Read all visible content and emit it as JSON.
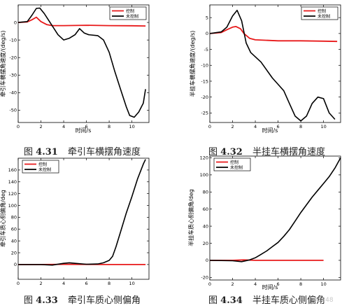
{
  "legend_labels": {
    "controlled": "控制",
    "uncontrolled": "未控制"
  },
  "colors": {
    "controlled": "#e8191a",
    "uncontrolled": "#000000"
  },
  "captions": [
    {
      "num": "4.31",
      "prefix": "图",
      "text": "牵引车横摆角速度"
    },
    {
      "num": "4.32",
      "prefix": "图",
      "text": "半挂车横摆角速度"
    },
    {
      "num": "4.33",
      "prefix": "图",
      "text": "牵引车质心侧偏角"
    },
    {
      "num": "4.34",
      "prefix": "图",
      "text": "半挂车质心侧偏角"
    }
  ],
  "watermark": "02248",
  "chart_data": [
    {
      "type": "line",
      "xlabel": "时间/s",
      "ylabel": "牵引车横摆角速度/(deg/s)",
      "xlim": [
        0,
        11.5
      ],
      "ylim": [
        -57,
        10
      ],
      "xticks": [
        0,
        2,
        4,
        6,
        8,
        10
      ],
      "yticks": [
        0,
        -10,
        -20,
        -30,
        -40,
        -50
      ],
      "legend": "top-right",
      "series": [
        {
          "name": "控制",
          "color": "controlled",
          "x": [
            0,
            0.8,
            1.2,
            1.6,
            2,
            2.5,
            3,
            4,
            6,
            8,
            10,
            11.2
          ],
          "y": [
            0,
            0.3,
            1.5,
            3,
            0.5,
            -1.2,
            -1.8,
            -1.8,
            -1.6,
            -1.8,
            -1.9,
            -2
          ]
        },
        {
          "name": "未控制",
          "color": "uncontrolled",
          "x": [
            0,
            0.8,
            1.2,
            1.6,
            1.9,
            2.3,
            2.6,
            3,
            3.5,
            4,
            4.5,
            5,
            5.4,
            5.8,
            6.2,
            7,
            7.5,
            8,
            8.5,
            9,
            9.5,
            9.8,
            10.2,
            10.6,
            11,
            11.2
          ],
          "y": [
            0,
            0.5,
            4,
            8,
            8.2,
            5,
            2,
            -2,
            -7,
            -10,
            -9,
            -7,
            -3.5,
            -6,
            -7,
            -7.5,
            -10,
            -17,
            -28,
            -38,
            -48,
            -53,
            -54,
            -51,
            -46,
            -38
          ]
        }
      ]
    },
    {
      "type": "line",
      "xlabel": "时间/s",
      "ylabel": "半挂车横摆角速度/(deg/s)",
      "xlim": [
        0,
        11.5
      ],
      "ylim": [
        -28,
        9
      ],
      "xticks": [
        0,
        2,
        4,
        6,
        8,
        10
      ],
      "yticks": [
        5,
        0,
        -5,
        -10,
        -15,
        -20,
        -25
      ],
      "legend": "top-right",
      "series": [
        {
          "name": "控制",
          "color": "controlled",
          "x": [
            0,
            1,
            1.5,
            2,
            2.3,
            2.7,
            3,
            3.5,
            4,
            6,
            8,
            10,
            11.2
          ],
          "y": [
            0,
            0.3,
            1.2,
            2,
            2.2,
            1.5,
            0,
            -1.5,
            -2,
            -2.3,
            -2.3,
            -2.4,
            -2.5
          ]
        },
        {
          "name": "未控制",
          "color": "uncontrolled",
          "x": [
            0,
            1,
            1.5,
            2,
            2.4,
            2.8,
            3.2,
            3.6,
            4.5,
            5.5,
            6,
            6.5,
            7,
            7.5,
            8,
            8.5,
            9,
            9.5,
            10,
            10.5,
            11
          ],
          "y": [
            0,
            0.5,
            2,
            5.5,
            7.3,
            4,
            -3,
            -6,
            -9,
            -14,
            -16,
            -18,
            -22,
            -26,
            -27.5,
            -26,
            -22,
            -20,
            -20.5,
            -25,
            -27
          ]
        }
      ]
    },
    {
      "type": "line",
      "xlabel": "",
      "ylabel": "牵引车质心侧偏角/deg",
      "xlim": [
        0,
        11.5
      ],
      "ylim": [
        -25,
        180
      ],
      "xticks": [
        0,
        2,
        4,
        6,
        8,
        10
      ],
      "yticks": [
        0,
        20,
        40,
        60,
        80,
        100,
        120,
        140,
        160
      ],
      "legend": "top-left",
      "series": [
        {
          "name": "控制",
          "color": "controlled",
          "x": [
            0,
            2,
            4,
            6,
            8,
            10,
            11.2
          ],
          "y": [
            0,
            0,
            0.4,
            0.2,
            0,
            0,
            0
          ]
        },
        {
          "name": "未控制",
          "color": "uncontrolled",
          "x": [
            0,
            2,
            3,
            4,
            4.5,
            5,
            6,
            7,
            7.5,
            8,
            8.3,
            8.6,
            9,
            9.5,
            10,
            10.5,
            11,
            11.2
          ],
          "y": [
            0,
            0,
            -1,
            2,
            3,
            2,
            0.5,
            1,
            3,
            7,
            14,
            30,
            55,
            87,
            115,
            145,
            170,
            178
          ]
        }
      ]
    },
    {
      "type": "line",
      "xlabel": "时间/s",
      "ylabel": "半挂车质心侧偏角/deg",
      "xlim": [
        0,
        11.5
      ],
      "ylim": [
        -23,
        122
      ],
      "xticks": [
        0,
        2,
        4,
        6,
        8,
        10
      ],
      "yticks": [
        120,
        100,
        80,
        60,
        40,
        20,
        0,
        -20
      ],
      "legend": "top-left",
      "series": [
        {
          "name": "控制",
          "color": "controlled",
          "x": [
            0,
            2,
            3,
            4,
            6,
            8,
            10
          ],
          "y": [
            0,
            0,
            0.5,
            0,
            0,
            0,
            0
          ]
        },
        {
          "name": "未控制",
          "color": "uncontrolled",
          "x": [
            0,
            2,
            2.8,
            3.5,
            4,
            4.5,
            5,
            5.5,
            6,
            6.5,
            7,
            7.5,
            8,
            8.5,
            9,
            9.5,
            10,
            10.5,
            11,
            11.5
          ],
          "y": [
            0,
            -0.5,
            -1.5,
            0.5,
            3,
            7,
            11,
            16,
            21,
            28,
            36,
            46,
            56,
            65,
            74,
            82,
            90,
            98,
            108,
            120
          ]
        }
      ]
    }
  ]
}
